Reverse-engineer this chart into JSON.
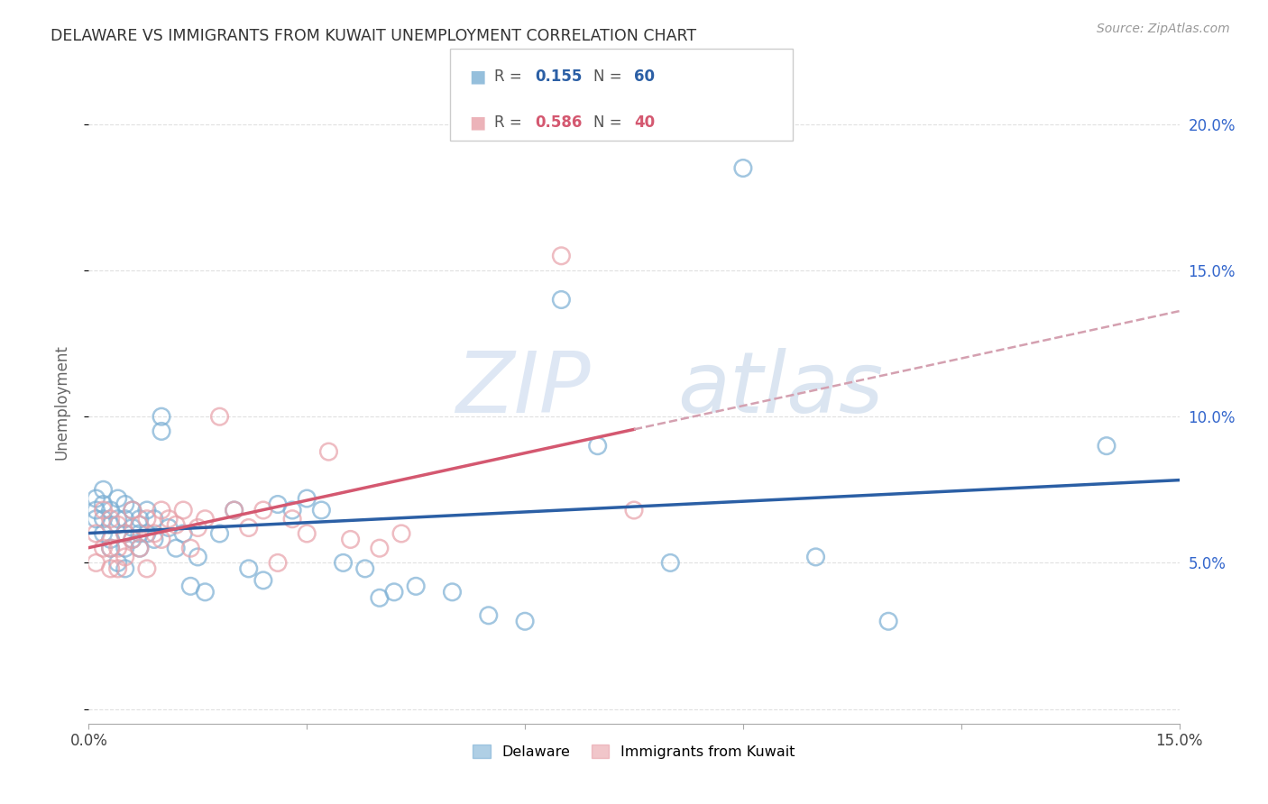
{
  "title": "DELAWARE VS IMMIGRANTS FROM KUWAIT UNEMPLOYMENT CORRELATION CHART",
  "source": "Source: ZipAtlas.com",
  "ylabel": "Unemployment",
  "xlim": [
    0.0,
    0.15
  ],
  "ylim": [
    -0.005,
    0.215
  ],
  "x_ticks": [
    0.0,
    0.03,
    0.06,
    0.09,
    0.12,
    0.15
  ],
  "x_tick_labels": [
    "0.0%",
    "",
    "",
    "",
    "",
    "15.0%"
  ],
  "y_ticks": [
    0.0,
    0.05,
    0.1,
    0.15,
    0.2
  ],
  "y_tick_labels_right": [
    "",
    "5.0%",
    "10.0%",
    "15.0%",
    "20.0%"
  ],
  "del_color": "#7bafd4",
  "kuw_color": "#e8a0a8",
  "del_line_color": "#2b5fa5",
  "kuw_line_color": "#d45870",
  "kuw_dash_color": "#d4a0b0",
  "background": "#ffffff",
  "grid_color": "#e0e0e0",
  "watermark_color": "#d0dff0",
  "right_axis_color": "#3366cc",
  "delaware_x": [
    0.001,
    0.001,
    0.001,
    0.002,
    0.002,
    0.002,
    0.002,
    0.003,
    0.003,
    0.003,
    0.003,
    0.004,
    0.004,
    0.004,
    0.005,
    0.005,
    0.005,
    0.005,
    0.005,
    0.006,
    0.006,
    0.006,
    0.007,
    0.007,
    0.007,
    0.008,
    0.008,
    0.009,
    0.009,
    0.01,
    0.01,
    0.011,
    0.012,
    0.013,
    0.014,
    0.015,
    0.016,
    0.018,
    0.02,
    0.022,
    0.024,
    0.026,
    0.028,
    0.03,
    0.032,
    0.035,
    0.038,
    0.04,
    0.042,
    0.045,
    0.05,
    0.055,
    0.06,
    0.065,
    0.07,
    0.08,
    0.09,
    0.1,
    0.11,
    0.14
  ],
  "delaware_y": [
    0.068,
    0.072,
    0.065,
    0.075,
    0.07,
    0.065,
    0.06,
    0.068,
    0.063,
    0.058,
    0.055,
    0.072,
    0.065,
    0.05,
    0.07,
    0.065,
    0.06,
    0.055,
    0.048,
    0.068,
    0.062,
    0.058,
    0.065,
    0.06,
    0.055,
    0.068,
    0.06,
    0.065,
    0.058,
    0.1,
    0.095,
    0.062,
    0.055,
    0.06,
    0.042,
    0.052,
    0.04,
    0.06,
    0.068,
    0.048,
    0.044,
    0.07,
    0.068,
    0.072,
    0.068,
    0.05,
    0.048,
    0.038,
    0.04,
    0.042,
    0.04,
    0.032,
    0.03,
    0.14,
    0.09,
    0.05,
    0.185,
    0.052,
    0.03,
    0.09
  ],
  "kuwait_x": [
    0.001,
    0.001,
    0.002,
    0.002,
    0.003,
    0.003,
    0.003,
    0.004,
    0.004,
    0.004,
    0.005,
    0.005,
    0.006,
    0.006,
    0.007,
    0.007,
    0.008,
    0.008,
    0.009,
    0.01,
    0.01,
    0.011,
    0.012,
    0.013,
    0.014,
    0.015,
    0.016,
    0.018,
    0.02,
    0.022,
    0.024,
    0.026,
    0.028,
    0.03,
    0.033,
    0.036,
    0.04,
    0.043,
    0.065,
    0.075
  ],
  "kuwait_y": [
    0.05,
    0.06,
    0.068,
    0.055,
    0.065,
    0.055,
    0.048,
    0.063,
    0.055,
    0.048,
    0.06,
    0.052,
    0.068,
    0.058,
    0.063,
    0.055,
    0.065,
    0.048,
    0.06,
    0.058,
    0.068,
    0.065,
    0.063,
    0.068,
    0.055,
    0.062,
    0.065,
    0.1,
    0.068,
    0.062,
    0.068,
    0.05,
    0.065,
    0.06,
    0.088,
    0.058,
    0.055,
    0.06,
    0.155,
    0.068
  ]
}
